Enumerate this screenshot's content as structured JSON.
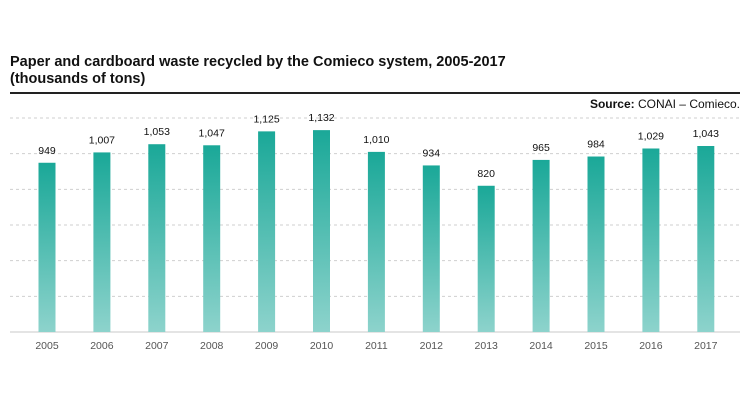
{
  "chart_data": {
    "type": "bar",
    "title_line1": "Paper and cardboard waste recycled by the Comieco system, 2005-2017",
    "title_line2": "(thousands of tons)",
    "source_label": "Source:",
    "source_text": "CONAI – Comieco.",
    "categories": [
      "2005",
      "2006",
      "2007",
      "2008",
      "2009",
      "2010",
      "2011",
      "2012",
      "2013",
      "2014",
      "2015",
      "2016",
      "2017"
    ],
    "values": [
      949,
      1007,
      1053,
      1047,
      1125,
      1132,
      1010,
      934,
      820,
      965,
      984,
      1029,
      1043
    ],
    "value_labels": [
      "949",
      "1,007",
      "1,053",
      "1,047",
      "1,125",
      "1,132",
      "1,010",
      "934",
      "820",
      "965",
      "984",
      "1,029",
      "1,043"
    ],
    "ylim": [
      0,
      1200
    ],
    "grid": true,
    "bar_color_top": "#1aa898",
    "bar_color_bottom": "#8dd3cc"
  }
}
